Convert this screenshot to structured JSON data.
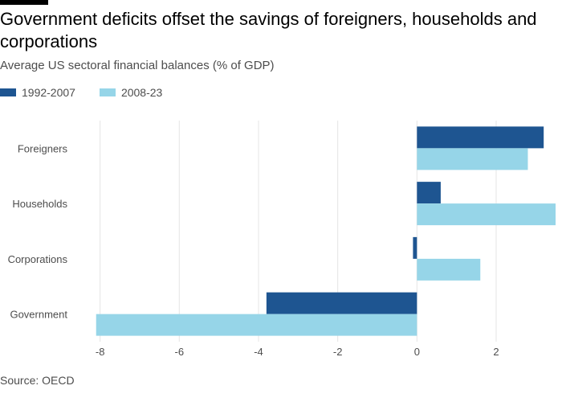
{
  "title": "Government deficits offset the savings of foreigners, households and corporations",
  "subtitle": "Average US sectoral financial balances (% of GDP)",
  "source": "Source: OECD",
  "colors": {
    "series_1": "#1e5591",
    "series_2": "#96d5e8",
    "grid": "#e5e5e5",
    "text": "#4d4d4d"
  },
  "chart_data": {
    "type": "bar",
    "orientation": "horizontal",
    "title": "Government deficits offset the savings of foreigners, households and corporations",
    "subtitle": "Average US sectoral financial balances (% of GDP)",
    "categories": [
      "Foreigners",
      "Households",
      "Corporations",
      "Government"
    ],
    "series": [
      {
        "name": "1992-2007",
        "color": "#1e5591",
        "values": [
          3.2,
          0.6,
          -0.1,
          -3.8
        ]
      },
      {
        "name": "2008-23",
        "color": "#96d5e8",
        "values": [
          2.8,
          3.5,
          1.6,
          -8.1
        ]
      }
    ],
    "xlim": [
      -8.5,
      3.5
    ],
    "xticks": [
      -8,
      -6,
      -4,
      -2,
      0,
      2
    ],
    "tick_labels": [
      "-8",
      "-6",
      "-4",
      "-2",
      "0",
      "2"
    ],
    "grid": true,
    "legend_position": "top-left"
  }
}
